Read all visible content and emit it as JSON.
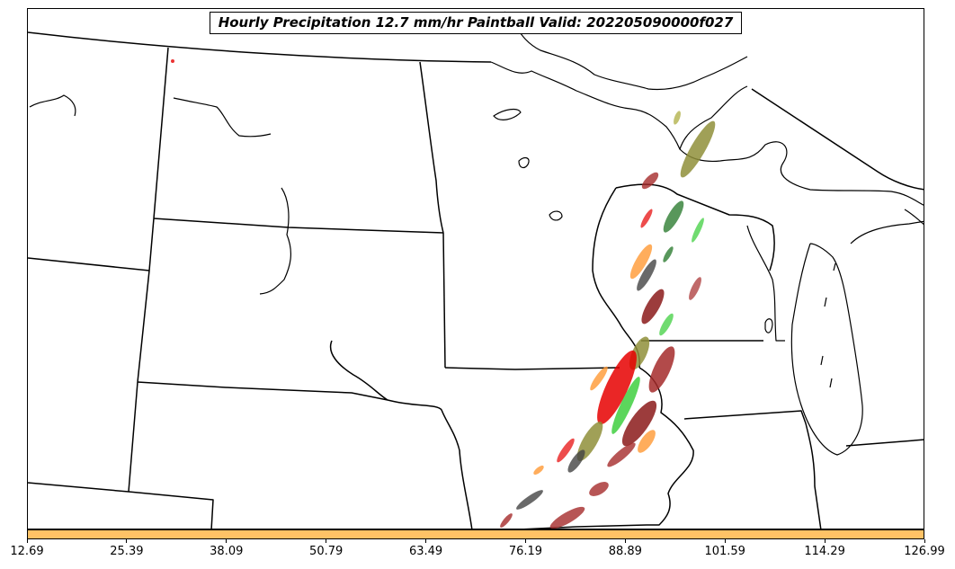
{
  "title": "Hourly Precipitation 12.7 mm/hr Paintball Valid: 202205090000f027",
  "colorbar": {
    "color": "#ffc266",
    "ticks": [
      "12.69",
      "25.39",
      "38.09",
      "50.79",
      "63.49",
      "76.19",
      "88.89",
      "101.59",
      "114.29",
      "126.99"
    ]
  },
  "colors": {
    "border": "#000000",
    "red": "#e60000",
    "dark_red": "#a52a2a",
    "green": "#33cc33",
    "dark_green": "#2e7d32",
    "olive": "#8f8f3a",
    "orange": "#ff9933",
    "gray": "#444444"
  },
  "icons": [
    "us-state-borders",
    "great-lakes-coastline",
    "precipitation-paintball-swaths"
  ]
}
